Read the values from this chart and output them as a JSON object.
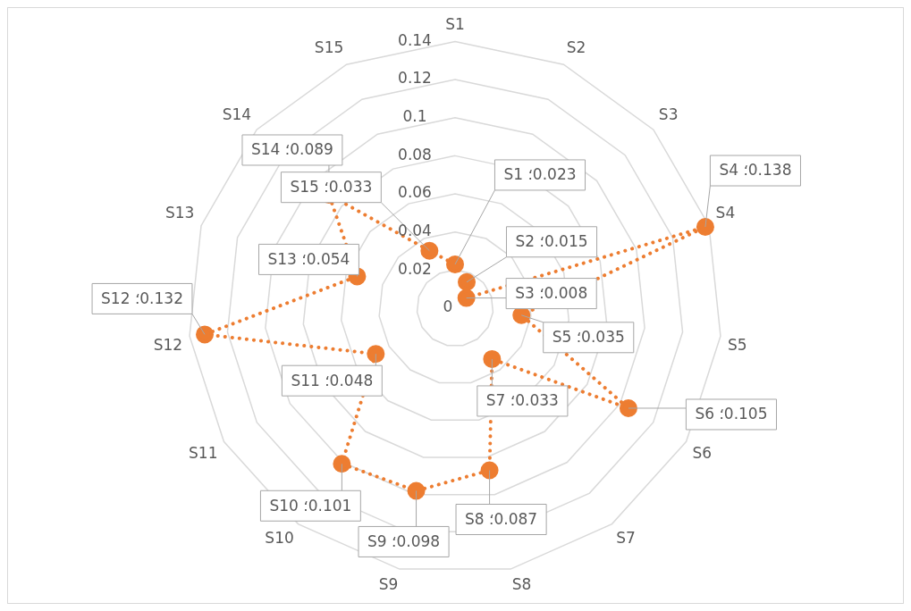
{
  "chart_data": {
    "type": "radar",
    "categories": [
      "S1",
      "S2",
      "S3",
      "S4",
      "S5",
      "S6",
      "S7",
      "S8",
      "S9",
      "S10",
      "S11",
      "S12",
      "S13",
      "S14",
      "S15"
    ],
    "series": [
      {
        "color": "#ed7d31",
        "values": [
          0.023,
          0.015,
          0.008,
          0.138,
          0.035,
          0.105,
          0.033,
          0.087,
          0.098,
          0.101,
          0.048,
          0.132,
          0.054,
          0.089,
          0.033
        ],
        "value_labels": [
          "S1 ؛0.023",
          "S2 ؛0.015",
          "S3 ؛0.008",
          "S4 ؛0.138",
          "S5 ؛0.035",
          "S6 ؛0.105",
          "S7 ؛0.033",
          "S8 ؛0.087",
          "S9 ؛0.098",
          "S10 ؛0.101",
          "S11 ؛0.048",
          "S12 ؛0.132",
          "S13 ؛0.054",
          "S14 ؛0.089",
          "S15 ؛0.033"
        ]
      }
    ],
    "ylim": [
      0,
      0.14
    ],
    "yticks": [
      0,
      0.02,
      0.04,
      0.06,
      0.08,
      0.1,
      0.12,
      0.14
    ],
    "grid": true,
    "legend": false,
    "marker": "circle",
    "line_style": "dotted"
  }
}
